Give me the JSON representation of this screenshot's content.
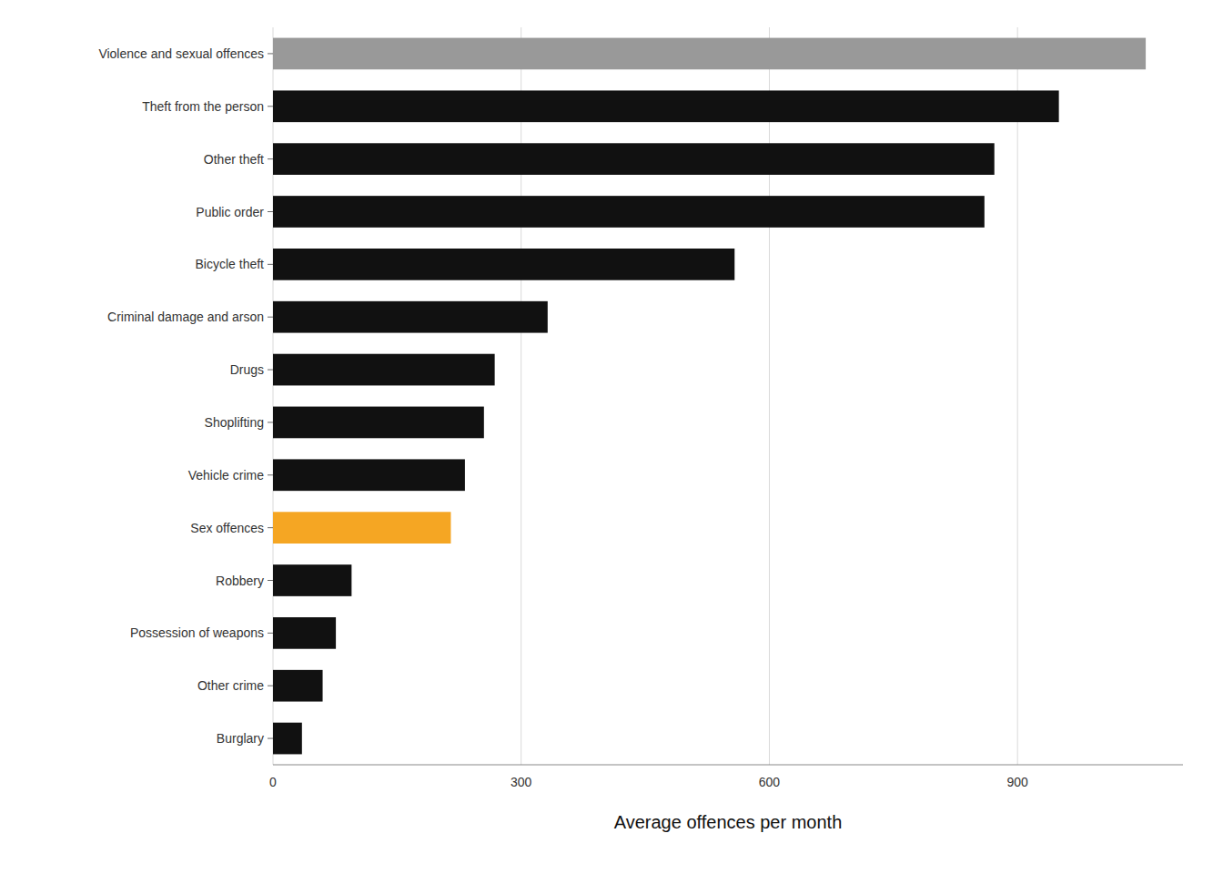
{
  "chart_data": {
    "type": "bar",
    "orientation": "horizontal",
    "categories": [
      "Violence and sexual offences",
      "Theft from the person",
      "Other theft",
      "Public order",
      "Bicycle theft",
      "Criminal damage and arson",
      "Drugs",
      "Shoplifting",
      "Vehicle crime",
      "Sex offences",
      "Robbery",
      "Possession of weapons",
      "Other crime",
      "Burglary"
    ],
    "values": [
      1055,
      950,
      872,
      860,
      558,
      332,
      268,
      255,
      232,
      215,
      95,
      76,
      60,
      35
    ],
    "colors": [
      "#999999",
      "#111111",
      "#111111",
      "#111111",
      "#111111",
      "#111111",
      "#111111",
      "#111111",
      "#111111",
      "#f5a623",
      "#111111",
      "#111111",
      "#111111",
      "#111111"
    ],
    "xlabel": "Average offences per month",
    "xlim": [
      0,
      1100
    ],
    "xticks": [
      0,
      300,
      600,
      900
    ],
    "grid": true
  }
}
